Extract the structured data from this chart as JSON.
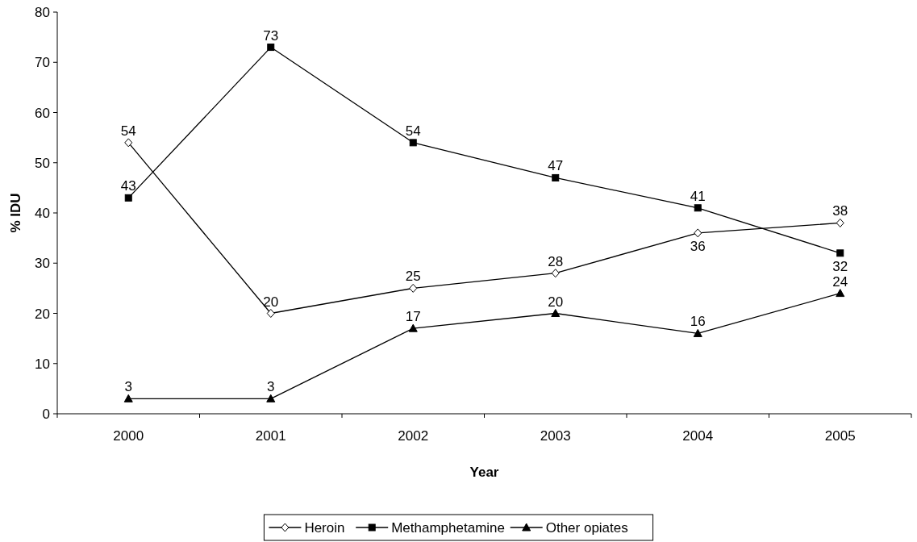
{
  "chart_data": {
    "type": "line",
    "xlabel": "Year",
    "ylabel": "% IDU",
    "categories": [
      "2000",
      "2001",
      "2002",
      "2003",
      "2004",
      "2005"
    ],
    "series": [
      {
        "name": "Heroin",
        "color": "#000000",
        "marker": "diamond",
        "values": [
          54,
          20,
          25,
          28,
          36,
          38
        ]
      },
      {
        "name": "Methamphetamine",
        "color": "#000000",
        "marker": "square",
        "values": [
          43,
          73,
          54,
          47,
          41,
          32
        ]
      },
      {
        "name": "Other opiates",
        "color": "#000000",
        "marker": "triangle",
        "values": [
          3,
          3,
          17,
          20,
          16,
          24
        ]
      }
    ],
    "ylim": [
      0,
      80
    ],
    "yticks": [
      0,
      10,
      20,
      30,
      40,
      50,
      60,
      70,
      80
    ],
    "data_labels": true,
    "legend": "bottom",
    "grid": false,
    "line_style": "solid"
  }
}
